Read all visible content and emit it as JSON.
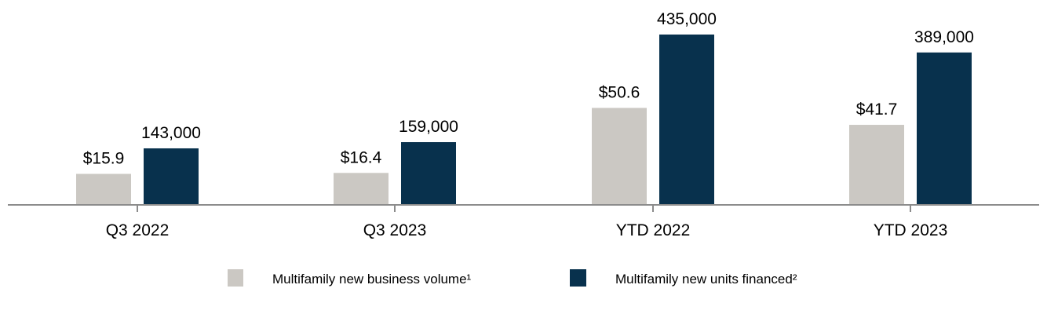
{
  "chart_data": {
    "type": "bar",
    "categories": [
      "Q3 2022",
      "Q3 2023",
      "YTD 2022",
      "YTD 2023"
    ],
    "series": [
      {
        "name": "Multifamily new business volume¹",
        "values": [
          15.9,
          16.4,
          50.6,
          41.7
        ],
        "labels": [
          "$15.9",
          "$16.4",
          "$50.6",
          "$41.7"
        ],
        "color": "#cbc8c3"
      },
      {
        "name": "Multifamily new units financed²",
        "values": [
          143000,
          159000,
          435000,
          389000
        ],
        "labels": [
          "143,000",
          "159,000",
          "435,000",
          "389,000"
        ],
        "color": "#08314d"
      }
    ],
    "legend_position": "bottom-center",
    "grid": false,
    "axis_color": "#8c8c8c"
  }
}
